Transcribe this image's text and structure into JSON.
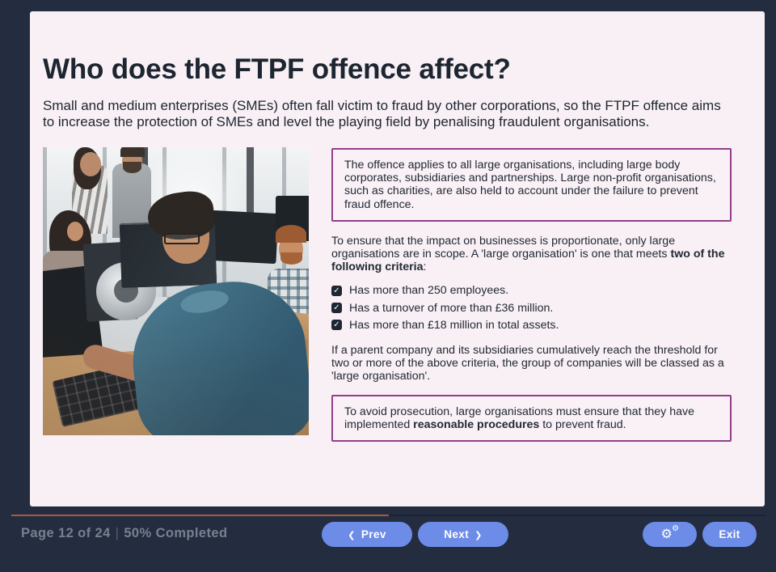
{
  "colors": {
    "frame_navy": "#242c40",
    "slide_background": "#f8f0f4",
    "callout_border_purple": "#913f89",
    "button_blue": "#6c8ce8",
    "progress_fill_orange": "#a55b3c",
    "text_dark": "#1d2431",
    "footer_text_gray": "#78808f"
  },
  "slide": {
    "title": "Who does the FTPF offence affect?",
    "intro": "Small and medium enterprises (SMEs) often fall victim to fraud by other corporations, so the FTPF offence aims to increase the protection of SMEs and level the playing field by penalising fraudulent organisations.",
    "photo_description": "office-team-working-at-desks"
  },
  "right_column": {
    "callout1": "The offence applies to all large organisations, including large body corporates, subsidiaries and partnerships. Large non-profit organisations, such as charities, are also held to account under the failure to prevent fraud offence.",
    "para_criteria": {
      "a": "To ensure that the impact on businesses is proportionate, only large organisations are in scope. A 'large organisation' is one that meets ",
      "b_bold": "two of the following criteria",
      "c": ":"
    },
    "checklist": {
      "check_glyph": "✓",
      "items": [
        {
          "label": "Has more than 250 employees."
        },
        {
          "label": "Has a turnover of more than £36 million."
        },
        {
          "label": "Has more than £18 million in total assets."
        }
      ]
    },
    "para_parent": "If a parent company and its subsidiaries cumulatively reach the threshold for two or more of the above criteria, the group of companies will be classed as a 'large organisation'.",
    "callout2": {
      "a": "To avoid prosecution, large organisations must ensure that they have implemented ",
      "b_bold": "reasonable procedures",
      "c": " to prevent fraud."
    }
  },
  "footer": {
    "page_info": "Page 12 of 24",
    "separator": "|",
    "completed": "50% Completed",
    "progress_percent": 50,
    "prev_label": "Prev",
    "next_label": "Next",
    "exit_label": "Exit",
    "icons": {
      "prev_chevron": "❮",
      "next_chevron": "❯",
      "gear": "⚙"
    }
  }
}
